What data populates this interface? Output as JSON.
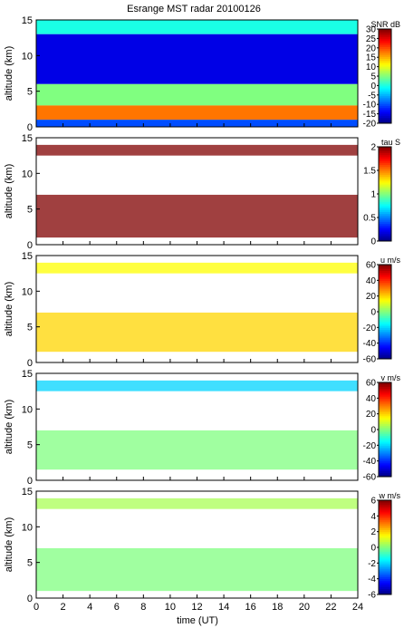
{
  "title": "Esrange MST radar 20100126",
  "x_axis": {
    "label": "time (UT)",
    "range": [
      0,
      24
    ],
    "ticks": [
      "0",
      "2",
      "4",
      "6",
      "8",
      "10",
      "12",
      "14",
      "16",
      "18",
      "20",
      "22",
      "24"
    ]
  },
  "chart_data": [
    {
      "type": "heatmap",
      "x_range": [
        0,
        24
      ],
      "y_range": [
        0,
        15
      ],
      "ylabel": "altitude (km)",
      "y_ticks": [
        "0",
        "5",
        "10",
        "15"
      ],
      "colorbar": {
        "label": "SNR dB",
        "range": [
          -20,
          30
        ],
        "ticks": [
          "30",
          "25",
          "20",
          "15",
          "10",
          "5",
          "0",
          "-5",
          "-10",
          "-15",
          "-20"
        ]
      },
      "description_layers": [
        {
          "alt": [
            13,
            15
          ],
          "value": 0
        },
        {
          "alt": [
            6,
            13
          ],
          "value": -15
        },
        {
          "alt": [
            3,
            6
          ],
          "value": 5
        },
        {
          "alt": [
            1,
            3
          ],
          "value": 18
        },
        {
          "alt": [
            0,
            1
          ],
          "value": -10
        }
      ]
    },
    {
      "type": "heatmap",
      "x_range": [
        0,
        24
      ],
      "y_range": [
        0,
        15
      ],
      "ylabel": "altitude (km)",
      "y_ticks": [
        "0",
        "5",
        "10",
        "15"
      ],
      "colorbar": {
        "label": "tau S",
        "range": [
          0,
          2
        ],
        "ticks": [
          "2",
          "1.5",
          "1",
          "0.5",
          "0"
        ]
      },
      "description_layers": [
        {
          "alt": [
            12.5,
            14
          ],
          "value": 2
        },
        {
          "alt": [
            1,
            7
          ],
          "value": 2
        }
      ]
    },
    {
      "type": "heatmap",
      "x_range": [
        0,
        24
      ],
      "y_range": [
        0,
        15
      ],
      "ylabel": "altitude (km)",
      "y_ticks": [
        "0",
        "5",
        "10",
        "15"
      ],
      "colorbar": {
        "label": "u m/s",
        "range": [
          -60,
          60
        ],
        "ticks": [
          "60",
          "40",
          "20",
          "0",
          "-20",
          "-40",
          "-60"
        ]
      },
      "description_layers": [
        {
          "alt": [
            12.5,
            14
          ],
          "value": 15
        },
        {
          "alt": [
            1.5,
            7
          ],
          "value": 20
        }
      ]
    },
    {
      "type": "heatmap",
      "x_range": [
        0,
        24
      ],
      "y_range": [
        0,
        15
      ],
      "ylabel": "altitude (km)",
      "y_ticks": [
        "0",
        "5",
        "10",
        "15"
      ],
      "colorbar": {
        "label": "v m/s",
        "range": [
          -60,
          60
        ],
        "ticks": [
          "60",
          "40",
          "20",
          "0",
          "-20",
          "-40",
          "-60"
        ]
      },
      "description_layers": [
        {
          "alt": [
            12.5,
            14
          ],
          "value": -20
        },
        {
          "alt": [
            1.5,
            7
          ],
          "value": 0
        }
      ]
    },
    {
      "type": "heatmap",
      "x_range": [
        0,
        24
      ],
      "y_range": [
        0,
        15
      ],
      "ylabel": "altitude (km)",
      "y_ticks": [
        "0",
        "5",
        "10",
        "15"
      ],
      "colorbar": {
        "label": "w m/s",
        "range": [
          -6,
          6
        ],
        "ticks": [
          "6",
          "4",
          "2",
          "0",
          "-2",
          "-4",
          "-6"
        ]
      },
      "description_layers": [
        {
          "alt": [
            12.5,
            14
          ],
          "value": 0.5
        },
        {
          "alt": [
            1,
            7
          ],
          "value": 0
        }
      ]
    }
  ]
}
